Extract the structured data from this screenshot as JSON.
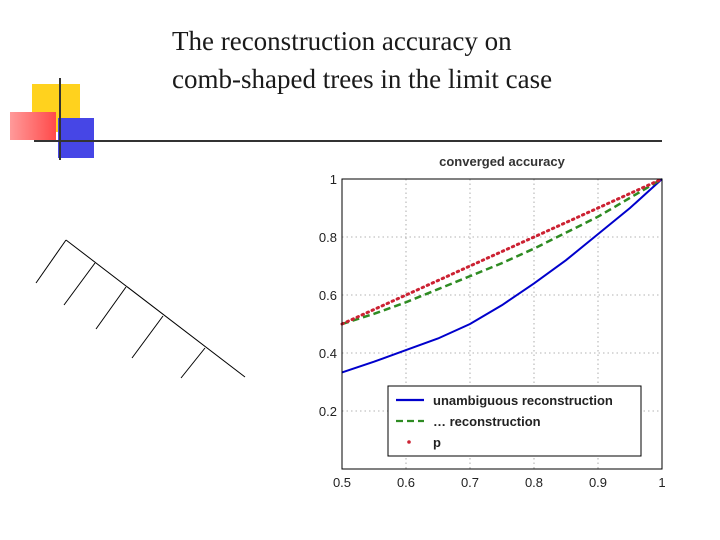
{
  "slide": {
    "title_line1": "The reconstruction accuracy on",
    "title_line2": "comb-shaped trees in the limit case"
  },
  "colors": {
    "accent_yellow": "#FFD21E",
    "accent_red": "#FF5A5A",
    "accent_blue": "#4646E6",
    "rule_line": "#333333"
  },
  "chart_data": {
    "type": "line",
    "title": "converged accuracy",
    "xlabel": "",
    "ylabel": "",
    "xlim": [
      0.5,
      1
    ],
    "ylim": [
      0,
      1
    ],
    "grid": true,
    "legend_position": "bottom-right",
    "x_ticks": [
      "0.5",
      "0.6",
      "0.7",
      "0.8",
      "0.9",
      "1"
    ],
    "y_ticks": [
      "0.2",
      "0.4",
      "0.6",
      "0.8",
      "1"
    ],
    "x": [
      0.5,
      0.55,
      0.6,
      0.65,
      0.7,
      0.75,
      0.8,
      0.85,
      0.9,
      0.95,
      1.0
    ],
    "series": [
      {
        "name": "unambiguous reconstruction",
        "color": "#0000CC",
        "style": "solid",
        "values": [
          0.333,
          0.37,
          0.41,
          0.45,
          0.5,
          0.565,
          0.64,
          0.72,
          0.81,
          0.9,
          1.0
        ]
      },
      {
        "name": "… reconstruction",
        "color": "#2E8B22",
        "style": "dashed",
        "values": [
          0.5,
          0.535,
          0.575,
          0.62,
          0.665,
          0.71,
          0.76,
          0.815,
          0.87,
          0.935,
          1.0
        ]
      },
      {
        "name": "p",
        "color": "#CC2233",
        "style": "dotted",
        "values": [
          0.5,
          0.55,
          0.6,
          0.65,
          0.7,
          0.75,
          0.8,
          0.85,
          0.9,
          0.95,
          1.0
        ]
      }
    ]
  }
}
